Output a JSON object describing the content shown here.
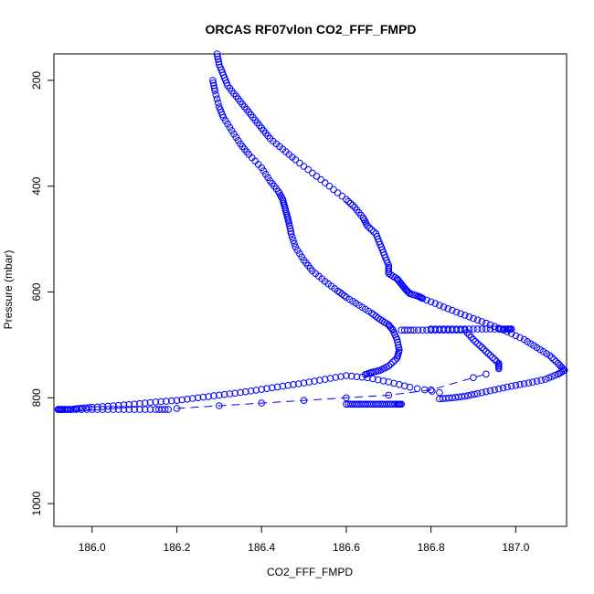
{
  "chart_data": {
    "type": "scatter",
    "title": "ORCAS RF07vlon CO2_FFF_FMPD",
    "xlabel": "CO2_FFF_FMPD",
    "ylabel": "Pressure (mbar)",
    "xlim": [
      185.91,
      187.12
    ],
    "ylim": [
      1043,
      150
    ],
    "y_reversed": true,
    "x_ticks": [
      "186.0",
      "186.2",
      "186.4",
      "186.6",
      "186.8",
      "187.0"
    ],
    "y_ticks": [
      "200",
      "400",
      "600",
      "800",
      "1000"
    ],
    "grid": false,
    "marker": "open-circle",
    "color": "#0000ff",
    "series": [
      {
        "segment": "ascent-left-branch",
        "x": [
          186.285,
          186.29,
          186.3,
          186.31,
          186.33,
          186.35,
          186.37,
          186.4,
          186.42,
          186.44,
          186.45,
          186.455,
          186.46,
          186.465,
          186.47,
          186.48,
          186.5,
          186.52,
          186.55,
          186.58,
          186.6,
          186.63,
          186.66,
          186.68,
          186.7,
          186.71,
          186.72,
          186.725,
          186.72,
          186.7,
          186.68,
          186.66,
          186.645
        ],
        "y": [
          200,
          220,
          250,
          270,
          295,
          320,
          340,
          365,
          390,
          410,
          425,
          440,
          455,
          470,
          490,
          515,
          540,
          560,
          580,
          598,
          610,
          625,
          640,
          652,
          662,
          672,
          690,
          710,
          725,
          740,
          748,
          752,
          756
        ]
      },
      {
        "segment": "ascent-level-and-descent",
        "x": [
          186.73,
          186.76,
          186.8,
          186.84,
          186.88,
          186.9,
          186.92,
          186.94,
          186.96,
          186.96
        ],
        "y": [
          672,
          672,
          672,
          672,
          672,
          690,
          705,
          720,
          735,
          745
        ]
      },
      {
        "segment": "main-profile-upper",
        "x": [
          186.295,
          186.3,
          186.31,
          186.32,
          186.34,
          186.36,
          186.38,
          186.4,
          186.42,
          186.45,
          186.48,
          186.52,
          186.56,
          186.6,
          186.62,
          186.64,
          186.65,
          186.67,
          186.68,
          186.69,
          186.7,
          186.7,
          186.72,
          186.73,
          186.74,
          186.75,
          186.77,
          186.78
        ],
        "y": [
          150,
          170,
          190,
          210,
          230,
          250,
          270,
          290,
          310,
          330,
          350,
          375,
          400,
          425,
          440,
          460,
          475,
          490,
          510,
          530,
          550,
          565,
          575,
          585,
          595,
          603,
          608,
          612
        ]
      },
      {
        "segment": "main-profile-high-co2",
        "x": [
          186.78,
          186.82,
          186.86,
          186.9,
          186.94,
          186.98,
          187.02,
          187.05,
          187.08,
          187.1,
          187.115,
          187.1,
          187.07,
          187.03,
          186.99,
          186.95,
          186.91,
          186.88,
          186.85,
          186.82
        ],
        "y": [
          612,
          625,
          638,
          650,
          662,
          675,
          690,
          705,
          720,
          735,
          748,
          755,
          765,
          772,
          778,
          785,
          792,
          797,
          800,
          802
        ]
      },
      {
        "segment": "low-level-return",
        "x": [
          186.82,
          186.75,
          186.7,
          186.65,
          186.6,
          186.55,
          186.5,
          186.45,
          186.4,
          186.35,
          186.3,
          186.25,
          186.2,
          186.15,
          186.1,
          186.05,
          186.0,
          185.97,
          185.95,
          185.93,
          185.92
        ],
        "y": [
          790,
          780,
          770,
          762,
          758,
          765,
          772,
          778,
          784,
          790,
          795,
          800,
          805,
          808,
          812,
          815,
          818,
          820,
          822,
          822,
          822
        ]
      },
      {
        "segment": "level-leg-820",
        "x": [
          185.92,
          185.95,
          186.0,
          186.05,
          186.1,
          186.15,
          186.18
        ],
        "y": [
          822,
          822,
          822,
          822,
          822,
          822,
          822
        ]
      },
      {
        "segment": "dashed-transect",
        "x": [
          186.2,
          186.3,
          186.4,
          186.5,
          186.6,
          186.7,
          186.8,
          186.9,
          186.93
        ],
        "y": [
          820,
          815,
          810,
          805,
          800,
          795,
          785,
          762,
          755
        ]
      },
      {
        "segment": "level-leg-812",
        "x": [
          186.6,
          186.62,
          186.64,
          186.66,
          186.68,
          186.7,
          186.72,
          186.73
        ],
        "y": [
          812,
          812,
          812,
          812,
          812,
          812,
          812,
          812
        ]
      },
      {
        "segment": "level-leg-670",
        "x": [
          186.8,
          186.84,
          186.88,
          186.92,
          186.96,
          186.98,
          186.99
        ],
        "y": [
          670,
          670,
          670,
          670,
          670,
          670,
          670
        ]
      }
    ]
  }
}
